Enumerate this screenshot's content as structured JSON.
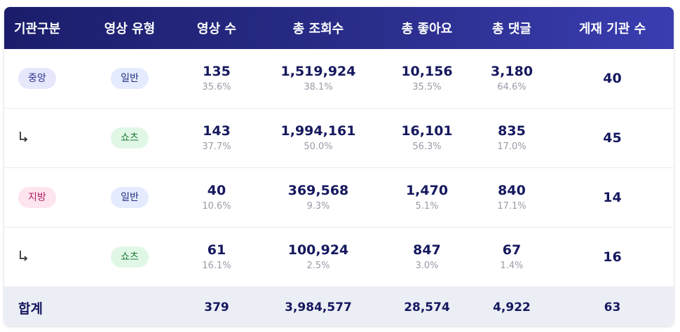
{
  "headers": [
    "기관구분",
    "영상 유형",
    "영상 수",
    "총 조회수",
    "총 좋아요",
    "총 댓글",
    "게재 기관 수"
  ],
  "rows": [
    {
      "inst": "중앙",
      "type": "일반",
      "videos": "135",
      "videos_pct": "35.6%",
      "views": "1,519,924",
      "views_pct": "38.1%",
      "likes": "10,156",
      "likes_pct": "35.5%",
      "comments": "3,180",
      "comments_pct": "64.6%",
      "orgs": "40"
    },
    {
      "inst": "",
      "type": "쇼츠",
      "videos": "143",
      "videos_pct": "37.7%",
      "views": "1,994,161",
      "views_pct": "50.0%",
      "likes": "16,101",
      "likes_pct": "56.3%",
      "comments": "835",
      "comments_pct": "17.0%",
      "orgs": "45"
    },
    {
      "inst": "지방",
      "type": "일반",
      "videos": "40",
      "videos_pct": "10.6%",
      "views": "369,568",
      "views_pct": "9.3%",
      "likes": "1,470",
      "likes_pct": "5.1%",
      "comments": "840",
      "comments_pct": "17.1%",
      "orgs": "14"
    },
    {
      "inst": "",
      "type": "쇼츠",
      "videos": "61",
      "videos_pct": "16.1%",
      "views": "100,924",
      "views_pct": "2.5%",
      "likes": "847",
      "likes_pct": "3.0%",
      "comments": "67",
      "comments_pct": "1.4%",
      "orgs": "16"
    }
  ],
  "total": {
    "label": "합계",
    "videos": "379",
    "views": "3,984,577",
    "likes": "28,574",
    "comments": "4,922",
    "orgs": "63"
  },
  "colors": {
    "header_start": "#1b1d6b",
    "header_end": "#3a3db0",
    "number_text": "#15185e",
    "percent_text": "#9a9aa8",
    "total_bg": "#eceef6"
  },
  "icons": {
    "sub_row": "sub-row-arrow-icon"
  }
}
